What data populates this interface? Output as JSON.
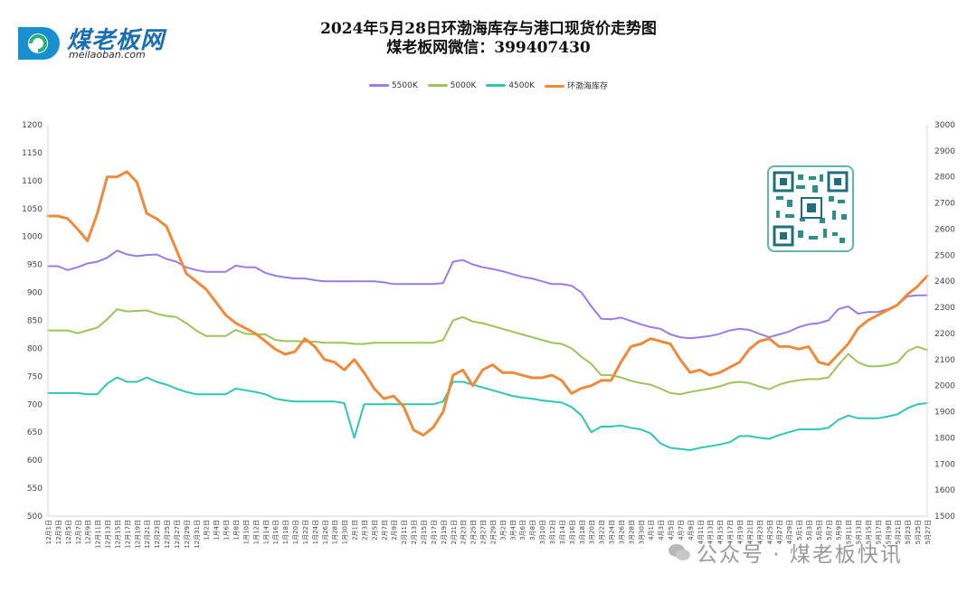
{
  "logo": {
    "name": "煤老板网",
    "url": "meilaoban.com"
  },
  "title_line1": "2024年5月28日环渤海库存与港口现货价走势图",
  "title_line2": "煤老板网微信：399407430",
  "watermark": "公众号 · 煤老板快讯",
  "colors": {
    "s5500": "#9b7be6",
    "s5000": "#9fc35a",
    "s4500": "#2ec7b4",
    "stock": "#ee8a3a"
  },
  "chart_data": {
    "type": "line",
    "title": "2024年5月28日环渤海库存与港口现货价走势图",
    "xlabel": "",
    "ylabel": "",
    "ylim": [
      500,
      1200
    ],
    "y2lim": [
      1500,
      3000
    ],
    "yticks": [
      500,
      550,
      600,
      650,
      700,
      750,
      800,
      850,
      900,
      950,
      1000,
      1050,
      1100,
      1150,
      1200
    ],
    "y2ticks": [
      1500,
      1600,
      1700,
      1800,
      1900,
      2000,
      2100,
      2200,
      2300,
      2400,
      2500,
      2600,
      2700,
      2800,
      2900,
      3000
    ],
    "legend_position": "top-center",
    "grid": false,
    "categories": [
      "12月1日",
      "12月3日",
      "12月5日",
      "12月7日",
      "12月9日",
      "12月11日",
      "12月13日",
      "12月15日",
      "12月17日",
      "12月19日",
      "12月21日",
      "12月23日",
      "12月25日",
      "12月27日",
      "12月29日",
      "12月31日",
      "1月2日",
      "1月4日",
      "1月6日",
      "1月8日",
      "1月10日",
      "1月12日",
      "1月14日",
      "1月16日",
      "1月18日",
      "1月20日",
      "1月22日",
      "1月24日",
      "1月26日",
      "1月28日",
      "1月30日",
      "2月1日",
      "2月3日",
      "2月5日",
      "2月7日",
      "2月9日",
      "2月11日",
      "2月13日",
      "2月15日",
      "2月17日",
      "2月19日",
      "2月21日",
      "2月23日",
      "2月25日",
      "2月27日",
      "2月29日",
      "3月2日",
      "3月4日",
      "3月6日",
      "3月8日",
      "3月10日",
      "3月12日",
      "3月14日",
      "3月16日",
      "3月18日",
      "3月20日",
      "3月22日",
      "3月24日",
      "3月26日",
      "3月28日",
      "3月30日",
      "4月1日",
      "4月3日",
      "4月5日",
      "4月7日",
      "4月9日",
      "4月11日",
      "4月13日",
      "4月15日",
      "4月17日",
      "4月19日",
      "4月21日",
      "4月23日",
      "4月25日",
      "4月27日",
      "4月29日",
      "5月1日",
      "5月3日",
      "5月5日",
      "5月7日",
      "5月9日",
      "5月11日",
      "5月13日",
      "5月15日",
      "5月17日",
      "5月19日",
      "5月21日",
      "5月23日",
      "5月25日",
      "5月27日"
    ],
    "series": [
      {
        "name": "5500K",
        "axis": "left",
        "values": [
          947,
          947,
          940,
          945,
          952,
          955,
          962,
          975,
          968,
          965,
          967,
          968,
          960,
          955,
          945,
          940,
          937,
          937,
          937,
          948,
          945,
          945,
          935,
          930,
          927,
          925,
          925,
          922,
          920,
          920,
          920,
          920,
          920,
          920,
          918,
          915,
          915,
          915,
          915,
          915,
          917,
          955,
          958,
          950,
          945,
          942,
          938,
          933,
          928,
          925,
          920,
          915,
          915,
          912,
          900,
          875,
          853,
          852,
          855,
          849,
          843,
          838,
          835,
          825,
          820,
          818,
          820,
          822,
          826,
          832,
          835,
          833,
          826,
          820,
          825,
          830,
          838,
          843,
          845,
          850,
          870,
          875,
          862,
          865,
          865,
          870,
          878,
          893,
          895,
          895
        ]
      },
      {
        "name": "5000K",
        "axis": "left",
        "values": [
          832,
          832,
          832,
          827,
          832,
          837,
          852,
          870,
          866,
          867,
          868,
          862,
          858,
          856,
          845,
          832,
          822,
          822,
          822,
          833,
          826,
          825,
          825,
          815,
          813,
          813,
          812,
          812,
          810,
          810,
          810,
          808,
          808,
          810,
          810,
          810,
          810,
          810,
          810,
          810,
          815,
          850,
          856,
          848,
          845,
          840,
          835,
          830,
          825,
          820,
          815,
          810,
          808,
          800,
          785,
          772,
          752,
          752,
          748,
          742,
          738,
          735,
          728,
          720,
          718,
          722,
          725,
          728,
          732,
          738,
          740,
          738,
          732,
          727,
          735,
          740,
          743,
          745,
          745,
          748,
          770,
          790,
          775,
          768,
          768,
          770,
          775,
          795,
          803,
          797
        ]
      },
      {
        "name": "4500K",
        "axis": "left",
        "values": [
          720,
          720,
          720,
          720,
          718,
          718,
          737,
          748,
          740,
          740,
          748,
          740,
          735,
          728,
          722,
          718,
          718,
          718,
          718,
          728,
          725,
          722,
          718,
          710,
          707,
          705,
          705,
          705,
          705,
          705,
          702,
          640,
          700,
          700,
          700,
          700,
          700,
          700,
          700,
          700,
          705,
          740,
          740,
          735,
          730,
          725,
          720,
          715,
          712,
          710,
          707,
          705,
          703,
          695,
          680,
          650,
          660,
          660,
          662,
          658,
          655,
          648,
          630,
          622,
          620,
          618,
          622,
          625,
          628,
          632,
          643,
          643,
          640,
          638,
          645,
          650,
          655,
          655,
          655,
          658,
          672,
          680,
          675,
          675,
          675,
          678,
          682,
          693,
          700,
          702
        ]
      },
      {
        "name": "环渤海库存",
        "axis": "right",
        "values": [
          2650,
          2650,
          2640,
          2600,
          2555,
          2660,
          2800,
          2800,
          2820,
          2780,
          2660,
          2640,
          2610,
          2520,
          2430,
          2400,
          2370,
          2320,
          2270,
          2240,
          2220,
          2200,
          2170,
          2140,
          2120,
          2130,
          2180,
          2150,
          2100,
          2090,
          2060,
          2100,
          2050,
          1990,
          1950,
          1960,
          1920,
          1830,
          1810,
          1840,
          1900,
          2040,
          2060,
          2000,
          2060,
          2080,
          2050,
          2050,
          2040,
          2030,
          2030,
          2040,
          2020,
          1970,
          1990,
          2000,
          2020,
          2020,
          2090,
          2150,
          2160,
          2180,
          2170,
          2160,
          2100,
          2050,
          2060,
          2040,
          2050,
          2070,
          2090,
          2140,
          2170,
          2180,
          2150,
          2150,
          2140,
          2150,
          2090,
          2080,
          2120,
          2160,
          2220,
          2250,
          2270,
          2290,
          2310,
          2350,
          2380,
          2420
        ]
      }
    ]
  }
}
